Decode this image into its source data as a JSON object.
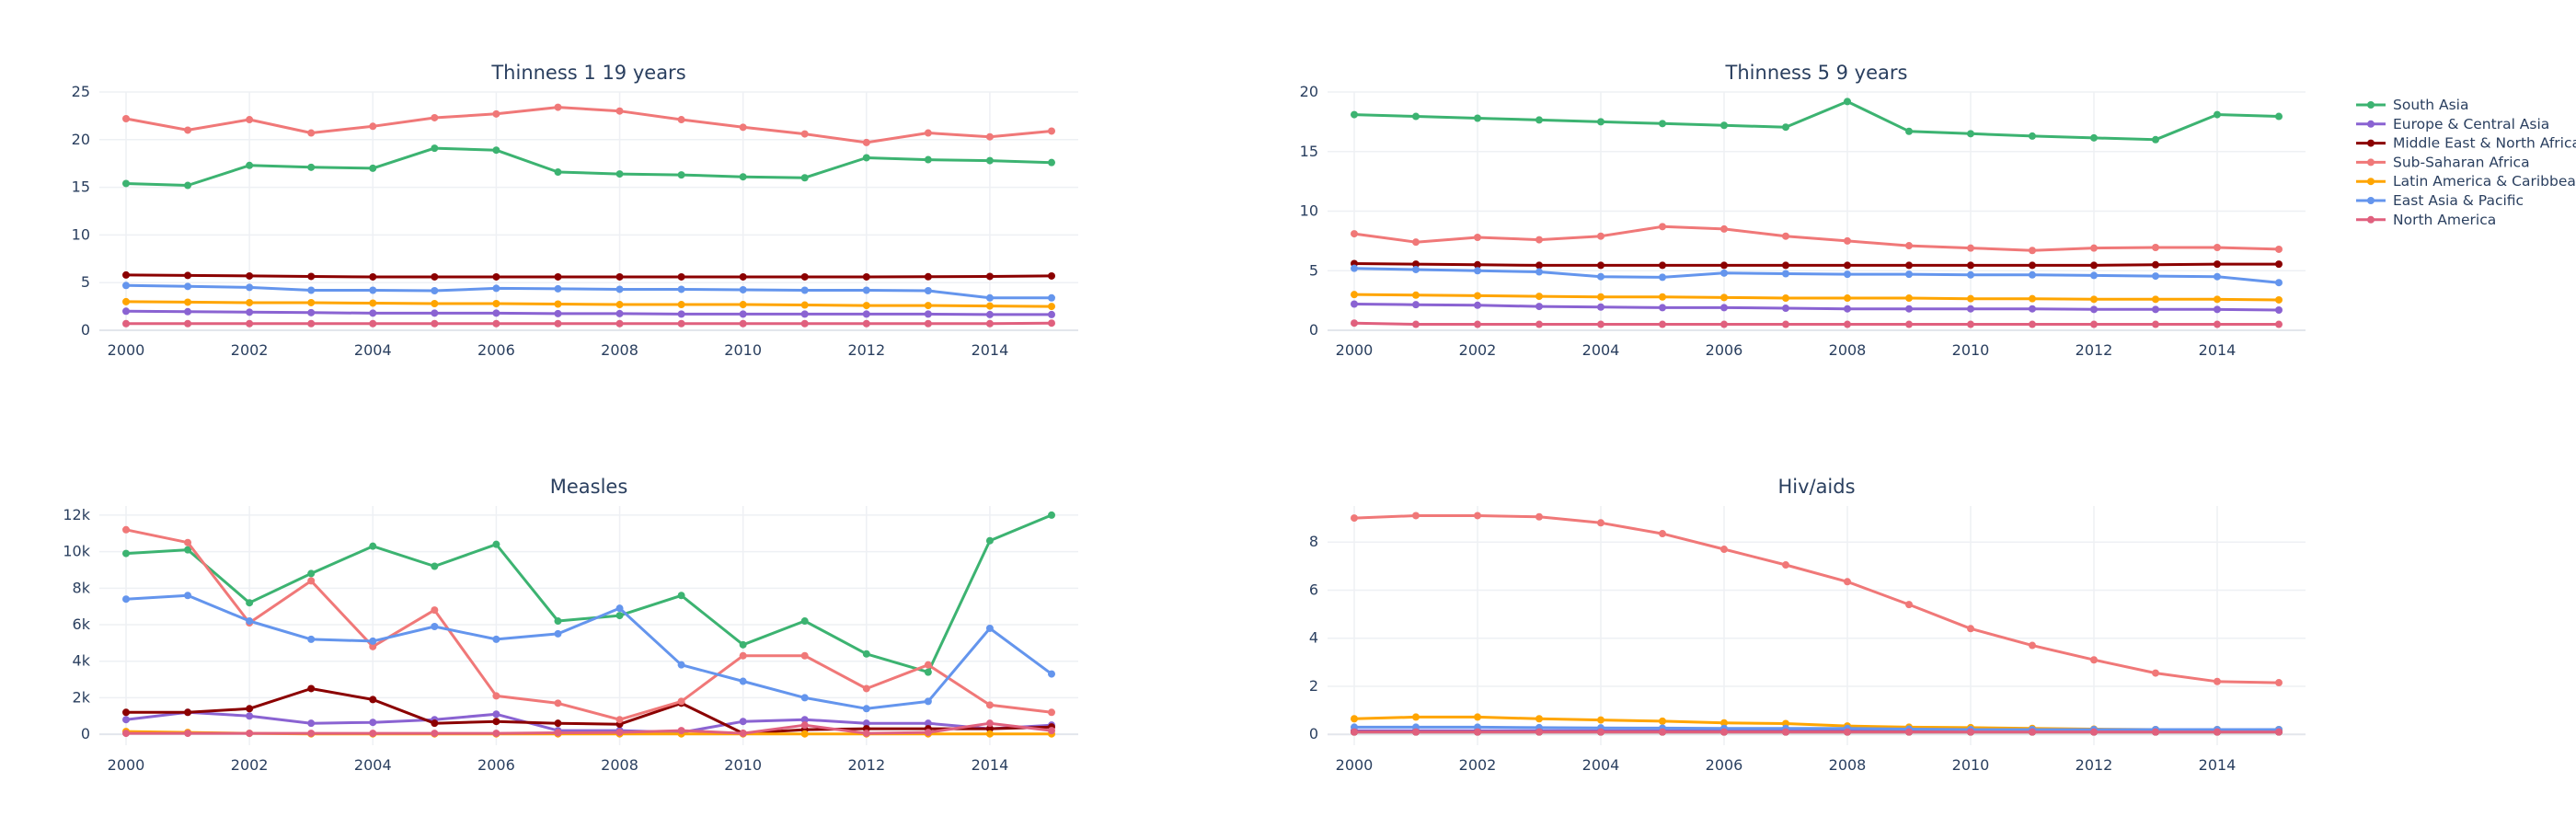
{
  "chart_data": [
    {
      "type": "line",
      "title": "Thinness 1 19 years",
      "xlabel": "",
      "ylabel": "",
      "xlim": [
        2000,
        2015
      ],
      "ylim": [
        0,
        25
      ],
      "y_ticks": [
        0,
        5,
        10,
        15,
        20,
        25
      ],
      "y_tick_labels": [
        "0",
        "5",
        "10",
        "15",
        "20",
        "25"
      ],
      "x_ticks": [
        2000,
        2002,
        2004,
        2006,
        2008,
        2010,
        2012,
        2014
      ],
      "x_tick_labels": [
        "2000",
        "2002",
        "2004",
        "2006",
        "2008",
        "2010",
        "2012",
        "2014"
      ],
      "x": [
        2000,
        2001,
        2002,
        2003,
        2004,
        2005,
        2006,
        2007,
        2008,
        2009,
        2010,
        2011,
        2012,
        2013,
        2014,
        2015
      ],
      "series": [
        {
          "name": "South Asia",
          "values": [
            15.4,
            15.2,
            17.3,
            17.1,
            17.0,
            19.1,
            18.9,
            16.6,
            16.4,
            16.3,
            16.1,
            16.0,
            18.1,
            17.9,
            17.8,
            17.6
          ]
        },
        {
          "name": "Europe & Central Asia",
          "values": [
            2.0,
            1.95,
            1.9,
            1.85,
            1.8,
            1.8,
            1.8,
            1.75,
            1.75,
            1.7,
            1.7,
            1.7,
            1.7,
            1.7,
            1.65,
            1.65
          ]
        },
        {
          "name": "Middle East & North Africa",
          "values": [
            5.8,
            5.75,
            5.7,
            5.65,
            5.6,
            5.6,
            5.6,
            5.6,
            5.6,
            5.6,
            5.6,
            5.6,
            5.6,
            5.62,
            5.65,
            5.7
          ]
        },
        {
          "name": "Sub-Saharan Africa",
          "values": [
            22.2,
            21.0,
            22.1,
            20.7,
            21.4,
            22.3,
            22.7,
            23.4,
            23.0,
            22.1,
            21.3,
            20.6,
            19.7,
            20.7,
            20.3,
            20.9
          ]
        },
        {
          "name": "Latin America & Caribbean",
          "values": [
            3.0,
            2.95,
            2.9,
            2.9,
            2.85,
            2.8,
            2.8,
            2.75,
            2.7,
            2.7,
            2.7,
            2.65,
            2.6,
            2.6,
            2.55,
            2.5
          ]
        },
        {
          "name": "East Asia & Pacific",
          "values": [
            4.7,
            4.6,
            4.5,
            4.2,
            4.2,
            4.15,
            4.4,
            4.35,
            4.3,
            4.3,
            4.25,
            4.2,
            4.2,
            4.15,
            3.4,
            3.4
          ]
        },
        {
          "name": "North America",
          "values": [
            0.7,
            0.7,
            0.7,
            0.7,
            0.7,
            0.7,
            0.7,
            0.7,
            0.7,
            0.7,
            0.7,
            0.7,
            0.7,
            0.7,
            0.7,
            0.75
          ]
        }
      ]
    },
    {
      "type": "line",
      "title": "Thinness 5 9 years",
      "xlabel": "",
      "ylabel": "",
      "xlim": [
        2000,
        2015
      ],
      "ylim": [
        0,
        20
      ],
      "y_ticks": [
        0,
        5,
        10,
        15,
        20
      ],
      "y_tick_labels": [
        "0",
        "5",
        "10",
        "15",
        "20"
      ],
      "x_ticks": [
        2000,
        2002,
        2004,
        2006,
        2008,
        2010,
        2012,
        2014
      ],
      "x_tick_labels": [
        "2000",
        "2002",
        "2004",
        "2006",
        "2008",
        "2010",
        "2012",
        "2014"
      ],
      "x": [
        2000,
        2001,
        2002,
        2003,
        2004,
        2005,
        2006,
        2007,
        2008,
        2009,
        2010,
        2011,
        2012,
        2013,
        2014,
        2015
      ],
      "series": [
        {
          "name": "South Asia",
          "values": [
            18.1,
            17.95,
            17.8,
            17.65,
            17.5,
            17.35,
            17.2,
            17.05,
            19.2,
            16.7,
            16.5,
            16.3,
            16.15,
            16.0,
            18.1,
            17.95
          ]
        },
        {
          "name": "Europe & Central Asia",
          "values": [
            2.2,
            2.15,
            2.1,
            2.0,
            1.95,
            1.9,
            1.9,
            1.85,
            1.8,
            1.8,
            1.8,
            1.8,
            1.75,
            1.75,
            1.75,
            1.7
          ]
        },
        {
          "name": "Middle East & North Africa",
          "values": [
            5.6,
            5.55,
            5.5,
            5.45,
            5.45,
            5.45,
            5.45,
            5.45,
            5.45,
            5.45,
            5.45,
            5.45,
            5.45,
            5.5,
            5.55,
            5.55
          ]
        },
        {
          "name": "Sub-Saharan Africa",
          "values": [
            8.1,
            7.4,
            7.8,
            7.6,
            7.9,
            8.7,
            8.5,
            7.9,
            7.5,
            7.1,
            6.9,
            6.7,
            6.9,
            6.95,
            6.95,
            6.8
          ]
        },
        {
          "name": "Latin America & Caribbean",
          "values": [
            3.0,
            2.95,
            2.9,
            2.85,
            2.8,
            2.8,
            2.75,
            2.7,
            2.7,
            2.7,
            2.65,
            2.65,
            2.6,
            2.6,
            2.6,
            2.55
          ]
        },
        {
          "name": "East Asia & Pacific",
          "values": [
            5.2,
            5.1,
            5.0,
            4.9,
            4.5,
            4.45,
            4.8,
            4.75,
            4.7,
            4.7,
            4.65,
            4.65,
            4.6,
            4.55,
            4.5,
            4.0
          ]
        },
        {
          "name": "North America",
          "values": [
            0.6,
            0.5,
            0.5,
            0.5,
            0.5,
            0.5,
            0.5,
            0.5,
            0.5,
            0.5,
            0.5,
            0.5,
            0.5,
            0.5,
            0.5,
            0.5
          ]
        }
      ]
    },
    {
      "type": "line",
      "title": "Measles",
      "xlabel": "",
      "ylabel": "",
      "xlim": [
        2000,
        2015
      ],
      "ylim": [
        -600,
        12500
      ],
      "y_ticks": [
        0,
        2000,
        4000,
        6000,
        8000,
        10000,
        12000
      ],
      "y_tick_labels": [
        "0",
        "2k",
        "4k",
        "6k",
        "8k",
        "10k",
        "12k"
      ],
      "x_ticks": [
        2000,
        2002,
        2004,
        2006,
        2008,
        2010,
        2012,
        2014
      ],
      "x_tick_labels": [
        "2000",
        "2002",
        "2004",
        "2006",
        "2008",
        "2010",
        "2012",
        "2014"
      ],
      "x": [
        2000,
        2001,
        2002,
        2003,
        2004,
        2005,
        2006,
        2007,
        2008,
        2009,
        2010,
        2011,
        2012,
        2013,
        2014,
        2015
      ],
      "series": [
        {
          "name": "South Asia",
          "values": [
            9900,
            10100,
            7200,
            8800,
            10300,
            9200,
            10400,
            6200,
            6500,
            7600,
            4900,
            6200,
            4400,
            3400,
            10600,
            12000
          ]
        },
        {
          "name": "Europe & Central Asia",
          "values": [
            800,
            1200,
            1000,
            600,
            650,
            800,
            1100,
            200,
            200,
            100,
            700,
            800,
            600,
            600,
            300,
            500
          ]
        },
        {
          "name": "Middle East & North Africa",
          "values": [
            1200,
            1200,
            1400,
            2500,
            1900,
            600,
            700,
            600,
            550,
            1700,
            50,
            250,
            300,
            300,
            300,
            400
          ]
        },
        {
          "name": "Sub-Saharan Africa",
          "values": [
            11200,
            10500,
            6100,
            8400,
            4800,
            6800,
            2100,
            1700,
            800,
            1800,
            4300,
            4300,
            2500,
            3800,
            1600,
            1200
          ]
        },
        {
          "name": "Latin America & Caribbean",
          "values": [
            150,
            100,
            50,
            20,
            20,
            20,
            20,
            20,
            20,
            20,
            20,
            20,
            20,
            20,
            20,
            20
          ]
        },
        {
          "name": "East Asia & Pacific",
          "values": [
            7400,
            7600,
            6200,
            5200,
            5100,
            5900,
            5200,
            5500,
            6900,
            3800,
            2900,
            2000,
            1400,
            1800,
            5800,
            3300
          ]
        },
        {
          "name": "North America",
          "values": [
            50,
            50,
            50,
            50,
            50,
            50,
            50,
            80,
            100,
            200,
            50,
            500,
            50,
            100,
            600,
            200
          ]
        }
      ]
    },
    {
      "type": "line",
      "title": "Hiv/aids",
      "xlabel": "",
      "ylabel": "",
      "xlim": [
        2000,
        2015
      ],
      "ylim": [
        -0.45,
        9.5
      ],
      "y_ticks": [
        0,
        2,
        4,
        6,
        8
      ],
      "y_tick_labels": [
        "0",
        "2",
        "4",
        "6",
        "8"
      ],
      "x_ticks": [
        2000,
        2002,
        2004,
        2006,
        2008,
        2010,
        2012,
        2014
      ],
      "x_tick_labels": [
        "2000",
        "2002",
        "2004",
        "2006",
        "2008",
        "2010",
        "2012",
        "2014"
      ],
      "x": [
        2000,
        2001,
        2002,
        2003,
        2004,
        2005,
        2006,
        2007,
        2008,
        2009,
        2010,
        2011,
        2012,
        2013,
        2014,
        2015
      ],
      "series": [
        {
          "name": "South Asia",
          "values": [
            0.1,
            0.1,
            0.1,
            0.1,
            0.1,
            0.1,
            0.1,
            0.1,
            0.1,
            0.1,
            0.1,
            0.1,
            0.1,
            0.1,
            0.1,
            0.1
          ]
        },
        {
          "name": "Europe & Central Asia",
          "values": [
            0.15,
            0.15,
            0.15,
            0.15,
            0.15,
            0.15,
            0.15,
            0.15,
            0.15,
            0.15,
            0.15,
            0.15,
            0.15,
            0.15,
            0.15,
            0.15
          ]
        },
        {
          "name": "Middle East & North Africa",
          "values": [
            0.1,
            0.1,
            0.1,
            0.1,
            0.1,
            0.1,
            0.1,
            0.1,
            0.1,
            0.1,
            0.1,
            0.1,
            0.1,
            0.1,
            0.1,
            0.1
          ]
        },
        {
          "name": "Sub-Saharan Africa",
          "values": [
            9.0,
            9.1,
            9.1,
            9.05,
            8.8,
            8.35,
            7.7,
            7.05,
            6.35,
            5.4,
            4.4,
            3.7,
            3.1,
            2.55,
            2.2,
            2.15
          ]
        },
        {
          "name": "Latin America & Caribbean",
          "values": [
            0.65,
            0.72,
            0.72,
            0.65,
            0.6,
            0.55,
            0.48,
            0.45,
            0.35,
            0.3,
            0.28,
            0.25,
            0.22,
            0.2,
            0.2,
            0.2
          ]
        },
        {
          "name": "East Asia & Pacific",
          "values": [
            0.3,
            0.3,
            0.3,
            0.28,
            0.27,
            0.26,
            0.25,
            0.25,
            0.25,
            0.22,
            0.2,
            0.2,
            0.2,
            0.2,
            0.2,
            0.2
          ]
        },
        {
          "name": "North America",
          "values": [
            0.1,
            0.1,
            0.1,
            0.1,
            0.1,
            0.1,
            0.1,
            0.1,
            0.1,
            0.1,
            0.1,
            0.1,
            0.1,
            0.1,
            0.1,
            0.1
          ]
        }
      ]
    }
  ],
  "legend": {
    "position": "top-right",
    "items": [
      {
        "name": "South Asia",
        "color": "#3cb371"
      },
      {
        "name": "Europe & Central Asia",
        "color": "#8a63d2"
      },
      {
        "name": "Middle East & North Africa",
        "color": "#8b0000"
      },
      {
        "name": "Sub-Saharan Africa",
        "color": "#f07878"
      },
      {
        "name": "Latin America & Caribbean",
        "color": "#ffa500"
      },
      {
        "name": "East Asia & Pacific",
        "color": "#6495ed"
      },
      {
        "name": "North America",
        "color": "#e0607e"
      }
    ]
  }
}
